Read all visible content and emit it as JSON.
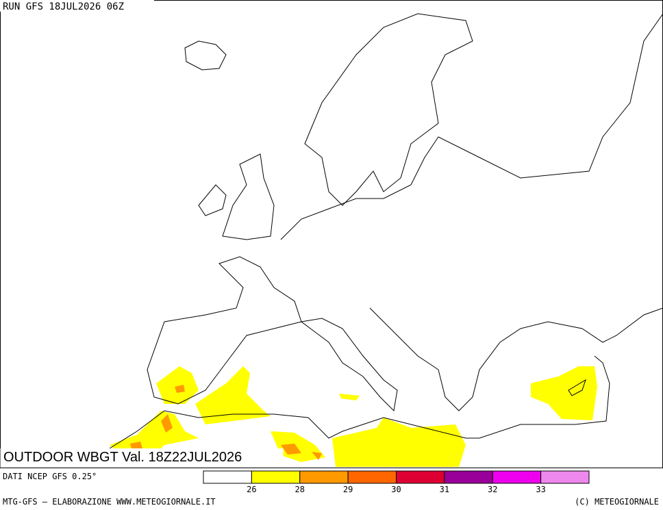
{
  "header": {
    "run": "RUN GFS 18JUL2026 06Z"
  },
  "map": {
    "title": "OUTDOOR WBGT Val. 18Z22JUL2026"
  },
  "legend": {
    "source": "DATI NCEP GFS 0.25°",
    "colors": [
      "#ffffff",
      "#ffff00",
      "#ff9900",
      "#ff6600",
      "#dd0033",
      "#990099",
      "#ee00ee",
      "#ee88ee"
    ],
    "ticks": [
      26,
      28,
      29,
      30,
      31,
      32,
      33
    ]
  },
  "footer": {
    "left": "MTG-GFS — ELABORAZIONE WWW.METEOGIORNALE.IT",
    "right": "(C) METEOGIORNALE"
  }
}
